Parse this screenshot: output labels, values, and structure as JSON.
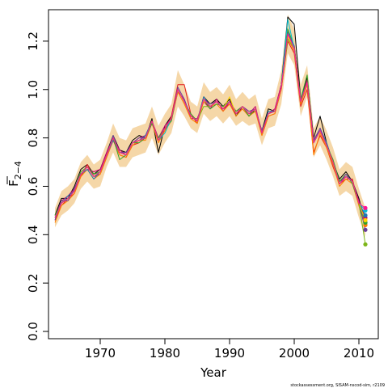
{
  "chart_data": {
    "type": "line",
    "title": "",
    "xlabel": "Year",
    "ylabel_main": "F",
    "ylabel_sub": "2−4",
    "xlim": [
      1962,
      2013
    ],
    "ylim": [
      -0.03,
      1.33
    ],
    "x_ticks": [
      1970,
      1980,
      1990,
      2000,
      2010
    ],
    "y_ticks": [
      0.0,
      0.2,
      0.4,
      0.6,
      0.8,
      1.0,
      1.2
    ],
    "y_tick_labels": [
      "0.0",
      "0.2",
      "0.4",
      "0.6",
      "0.8",
      "1.0",
      "1.2"
    ],
    "grid": false,
    "legend": "none",
    "x": [
      1963,
      1964,
      1965,
      1966,
      1967,
      1968,
      1969,
      1970,
      1971,
      1972,
      1973,
      1974,
      1975,
      1976,
      1977,
      1978,
      1979,
      1980,
      1981,
      1982,
      1983,
      1984,
      1985,
      1986,
      1987,
      1988,
      1989,
      1990,
      1991,
      1992,
      1993,
      1994,
      1995,
      1996,
      1997,
      1998,
      1999,
      2000,
      2001,
      2002,
      2003,
      2004,
      2005,
      2006,
      2007,
      2008,
      2009,
      2010,
      2011
    ],
    "median": [
      0.47,
      0.53,
      0.55,
      0.58,
      0.65,
      0.68,
      0.64,
      0.66,
      0.73,
      0.8,
      0.74,
      0.73,
      0.78,
      0.79,
      0.8,
      0.87,
      0.79,
      0.84,
      0.88,
      1.0,
      0.95,
      0.89,
      0.87,
      0.96,
      0.93,
      0.95,
      0.92,
      0.95,
      0.9,
      0.93,
      0.9,
      0.92,
      0.82,
      0.9,
      0.91,
      1.01,
      1.23,
      1.17,
      0.95,
      1.03,
      0.78,
      0.83,
      0.77,
      0.7,
      0.61,
      0.64,
      0.62,
      0.53,
      0.45
    ],
    "band_lower": [
      0.43,
      0.48,
      0.5,
      0.53,
      0.59,
      0.62,
      0.59,
      0.6,
      0.68,
      0.74,
      0.68,
      0.68,
      0.72,
      0.73,
      0.74,
      0.8,
      0.73,
      0.78,
      0.82,
      0.93,
      0.89,
      0.84,
      0.82,
      0.9,
      0.87,
      0.89,
      0.86,
      0.89,
      0.85,
      0.87,
      0.85,
      0.86,
      0.77,
      0.84,
      0.85,
      0.94,
      1.15,
      1.1,
      0.89,
      0.97,
      0.72,
      0.77,
      0.71,
      0.64,
      0.56,
      0.58,
      0.56,
      0.47,
      0.39
    ],
    "band_upper": [
      0.51,
      0.58,
      0.6,
      0.63,
      0.7,
      0.73,
      0.69,
      0.71,
      0.78,
      0.86,
      0.8,
      0.79,
      0.84,
      0.85,
      0.86,
      0.93,
      0.85,
      0.9,
      0.94,
      1.08,
      1.02,
      0.95,
      0.93,
      1.03,
      0.99,
      1.01,
      0.98,
      1.02,
      0.96,
      0.99,
      0.96,
      0.98,
      0.88,
      0.96,
      0.97,
      1.08,
      1.31,
      1.25,
      1.02,
      1.1,
      0.84,
      0.89,
      0.83,
      0.76,
      0.67,
      0.7,
      0.68,
      0.59,
      0.51
    ],
    "series": [
      {
        "color": "#000000",
        "values": [
          0.48,
          0.55,
          0.55,
          0.6,
          0.67,
          0.69,
          0.65,
          0.67,
          0.74,
          0.81,
          0.75,
          0.74,
          0.79,
          0.81,
          0.8,
          0.88,
          0.74,
          0.85,
          0.89,
          1.0,
          0.95,
          0.89,
          0.87,
          0.97,
          0.94,
          0.96,
          0.93,
          0.96,
          0.89,
          0.93,
          0.9,
          0.91,
          0.83,
          0.92,
          0.91,
          1.02,
          1.3,
          1.27,
          0.96,
          1.05,
          0.8,
          0.89,
          0.78,
          0.7,
          0.63,
          0.66,
          0.62,
          0.55,
          0.45
        ]
      },
      {
        "color": "#e41a1c",
        "values": [
          0.46,
          0.52,
          0.55,
          0.57,
          0.64,
          0.69,
          0.64,
          0.65,
          0.72,
          0.79,
          0.73,
          0.72,
          0.77,
          0.78,
          0.8,
          0.86,
          0.79,
          0.83,
          0.89,
          1.02,
          1.02,
          0.9,
          0.86,
          0.96,
          0.93,
          0.95,
          0.92,
          0.94,
          0.9,
          0.92,
          0.89,
          0.92,
          0.81,
          0.89,
          0.9,
          1.0,
          1.2,
          1.15,
          0.93,
          1.0,
          0.74,
          0.81,
          0.76,
          0.68,
          0.61,
          0.63,
          0.63,
          0.52,
          0.44
        ]
      },
      {
        "color": "#c2006b",
        "values": [
          0.47,
          0.54,
          0.56,
          0.59,
          0.65,
          0.67,
          0.66,
          0.67,
          0.74,
          0.8,
          0.75,
          0.73,
          0.78,
          0.8,
          0.81,
          0.87,
          0.8,
          0.85,
          0.88,
          0.99,
          0.96,
          0.88,
          0.88,
          0.95,
          0.92,
          0.96,
          0.91,
          0.95,
          0.91,
          0.93,
          0.9,
          0.93,
          0.82,
          0.9,
          0.92,
          1.02,
          1.22,
          1.18,
          0.95,
          1.04,
          0.79,
          0.83,
          0.77,
          0.7,
          0.62,
          0.64,
          0.62,
          0.54,
          0.47
        ]
      },
      {
        "color": "#ff7f00",
        "values": [
          0.45,
          0.52,
          0.54,
          0.57,
          0.64,
          0.67,
          0.63,
          0.65,
          0.72,
          0.79,
          0.73,
          0.72,
          0.77,
          0.79,
          0.79,
          0.86,
          0.78,
          0.83,
          0.87,
          0.99,
          0.94,
          0.88,
          0.86,
          0.95,
          0.93,
          0.94,
          0.91,
          0.94,
          0.89,
          0.92,
          0.89,
          0.91,
          0.81,
          0.89,
          0.9,
          1.0,
          1.21,
          1.16,
          0.94,
          1.02,
          0.73,
          0.82,
          0.76,
          0.69,
          0.6,
          0.63,
          0.61,
          0.52,
          0.44
        ]
      },
      {
        "color": "#1f78b4",
        "values": [
          0.47,
          0.53,
          0.56,
          0.58,
          0.65,
          0.67,
          0.63,
          0.66,
          0.73,
          0.79,
          0.74,
          0.73,
          0.78,
          0.79,
          0.81,
          0.87,
          0.79,
          0.84,
          0.88,
          1.0,
          0.95,
          0.89,
          0.87,
          0.97,
          0.93,
          0.95,
          0.92,
          0.95,
          0.9,
          0.93,
          0.9,
          0.92,
          0.82,
          0.91,
          0.91,
          1.01,
          1.24,
          1.17,
          0.96,
          1.03,
          0.78,
          0.84,
          0.78,
          0.7,
          0.61,
          0.64,
          0.62,
          0.53,
          0.48
        ]
      },
      {
        "color": "#33a02c",
        "values": [
          0.48,
          0.53,
          0.55,
          0.58,
          0.66,
          0.68,
          0.65,
          0.66,
          0.73,
          0.8,
          0.71,
          0.73,
          0.78,
          0.78,
          0.8,
          0.86,
          0.8,
          0.84,
          0.87,
          1.0,
          0.95,
          0.9,
          0.87,
          0.96,
          0.92,
          0.94,
          0.93,
          0.95,
          0.91,
          0.93,
          0.89,
          0.92,
          0.82,
          0.9,
          0.91,
          1.01,
          1.25,
          1.18,
          0.96,
          1.06,
          0.78,
          0.83,
          0.77,
          0.71,
          0.62,
          0.65,
          0.61,
          0.53,
          0.45
        ]
      },
      {
        "color": "#6a3d9a",
        "values": [
          0.46,
          0.54,
          0.54,
          0.59,
          0.65,
          0.68,
          0.64,
          0.66,
          0.73,
          0.81,
          0.74,
          0.74,
          0.78,
          0.8,
          0.8,
          0.87,
          0.79,
          0.84,
          0.88,
          1.01,
          0.96,
          0.89,
          0.87,
          0.96,
          0.94,
          0.95,
          0.92,
          0.95,
          0.9,
          0.93,
          0.91,
          0.92,
          0.83,
          0.9,
          0.91,
          1.01,
          1.23,
          1.18,
          0.95,
          1.03,
          0.79,
          0.84,
          0.77,
          0.7,
          0.61,
          0.65,
          0.62,
          0.53,
          0.42
        ]
      },
      {
        "color": "#00bcd4",
        "values": [
          0.47,
          0.53,
          0.55,
          0.58,
          0.65,
          0.68,
          0.64,
          0.66,
          0.73,
          0.8,
          0.74,
          0.73,
          0.78,
          0.79,
          0.8,
          0.87,
          0.79,
          0.82,
          0.88,
          1.0,
          0.95,
          0.89,
          0.87,
          0.96,
          0.93,
          0.95,
          0.92,
          0.95,
          0.9,
          0.93,
          0.9,
          0.92,
          0.82,
          0.9,
          0.91,
          1.01,
          1.29,
          1.17,
          0.95,
          1.03,
          0.78,
          0.83,
          0.77,
          0.7,
          0.61,
          0.64,
          0.62,
          0.53,
          0.5
        ]
      },
      {
        "color": "#ffd400",
        "values": [
          0.47,
          0.53,
          0.55,
          0.58,
          0.65,
          0.68,
          0.64,
          0.66,
          0.73,
          0.8,
          0.74,
          0.73,
          0.78,
          0.79,
          0.8,
          0.87,
          0.79,
          0.84,
          0.88,
          1.0,
          0.95,
          0.89,
          0.87,
          0.96,
          0.93,
          0.95,
          0.92,
          0.97,
          0.9,
          0.93,
          0.9,
          0.92,
          0.82,
          0.9,
          0.91,
          1.01,
          1.22,
          1.17,
          0.95,
          1.03,
          0.78,
          0.83,
          0.77,
          0.7,
          0.61,
          0.64,
          0.62,
          0.53,
          0.46
        ]
      },
      {
        "color": "#7cb518",
        "values": [
          0.47,
          0.53,
          0.55,
          0.58,
          0.65,
          0.68,
          0.64,
          0.66,
          0.73,
          0.8,
          0.74,
          0.73,
          0.78,
          0.79,
          0.8,
          0.87,
          0.79,
          0.84,
          0.88,
          1.0,
          0.95,
          0.89,
          0.87,
          0.93,
          0.93,
          0.95,
          0.92,
          0.95,
          0.9,
          0.93,
          0.9,
          0.92,
          0.82,
          0.9,
          0.91,
          1.01,
          1.21,
          1.17,
          0.95,
          1.03,
          0.78,
          0.83,
          0.77,
          0.7,
          0.61,
          0.64,
          0.62,
          0.53,
          0.36
        ]
      },
      {
        "color": "#ff1493",
        "values": [
          0.47,
          0.53,
          0.55,
          0.58,
          0.65,
          0.68,
          0.64,
          0.66,
          0.73,
          0.8,
          0.74,
          0.73,
          0.78,
          0.79,
          0.8,
          0.87,
          0.79,
          0.84,
          0.88,
          1.0,
          0.95,
          0.89,
          0.87,
          0.96,
          0.93,
          0.95,
          0.92,
          0.95,
          0.9,
          0.93,
          0.9,
          0.92,
          0.82,
          0.9,
          0.91,
          1.01,
          1.23,
          1.17,
          0.95,
          1.03,
          0.78,
          0.83,
          0.77,
          0.7,
          0.61,
          0.64,
          0.62,
          0.53,
          0.51
        ]
      }
    ]
  },
  "footer": {
    "credit": "stockassessment.org, SISAM-nscod-sim, r2109"
  }
}
